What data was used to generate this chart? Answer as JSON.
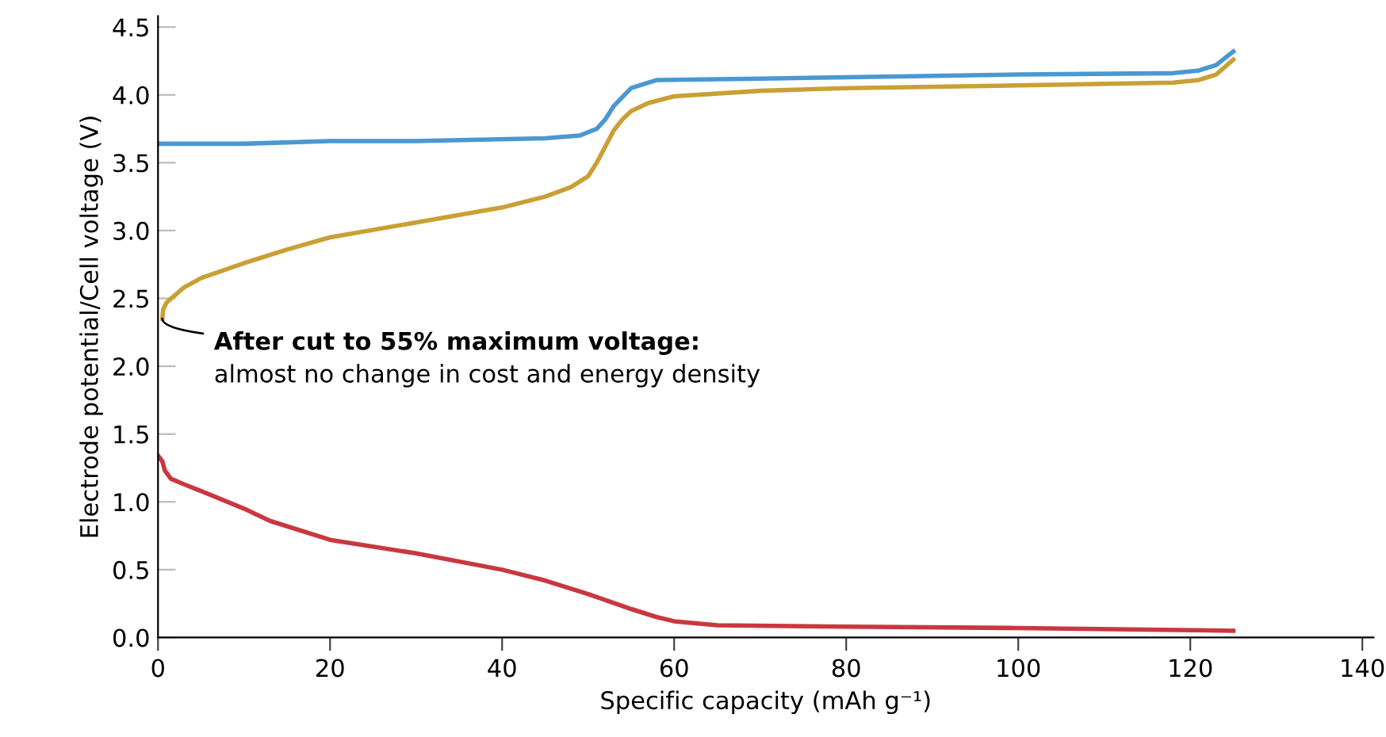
{
  "chart_data": {
    "type": "line",
    "xlabel": "Specific capacity (mAh g⁻¹)",
    "ylabel": "Electrode potential/Cell voltage (V)",
    "xlim": [
      0,
      141.3
    ],
    "ylim": [
      0,
      4.58
    ],
    "xticks": [
      0,
      20,
      40,
      60,
      80,
      100,
      120,
      140
    ],
    "yticks": [
      {
        "value": 0,
        "label": "0.0"
      },
      {
        "value": 0.5,
        "label": "0.5"
      },
      {
        "value": 1,
        "label": "1.0"
      },
      {
        "value": 1.5,
        "label": "1.5"
      },
      {
        "value": 2,
        "label": "2.0"
      },
      {
        "value": 2.5,
        "label": "2.5"
      },
      {
        "value": 3,
        "label": "3.0"
      },
      {
        "value": 3.5,
        "label": "3.5"
      },
      {
        "value": 4,
        "label": "4.0"
      },
      {
        "value": 4.5,
        "label": "4.5"
      }
    ],
    "marker": "none",
    "line_style": "solid",
    "series": [
      {
        "color": "#4a98d2",
        "x": [
          0,
          10,
          20,
          30,
          45,
          49,
          51,
          52,
          53,
          55,
          58,
          70,
          80,
          100,
          118,
          121,
          123,
          125
        ],
        "values": [
          3.64,
          3.64,
          3.66,
          3.66,
          3.68,
          3.7,
          3.75,
          3.82,
          3.92,
          4.05,
          4.11,
          4.12,
          4.13,
          4.15,
          4.16,
          4.18,
          4.22,
          4.32
        ]
      },
      {
        "color": "#c9a035",
        "x": [
          0.5,
          0.6,
          1,
          3,
          5,
          10,
          15,
          20,
          30,
          40,
          45,
          48,
          50,
          51,
          52,
          53,
          54,
          55,
          57,
          60,
          70,
          80,
          100,
          118,
          121,
          123,
          125
        ],
        "values": [
          2.35,
          2.42,
          2.47,
          2.58,
          2.65,
          2.76,
          2.86,
          2.95,
          3.06,
          3.17,
          3.25,
          3.32,
          3.4,
          3.5,
          3.62,
          3.74,
          3.82,
          3.88,
          3.94,
          3.99,
          4.03,
          4.05,
          4.07,
          4.09,
          4.11,
          4.15,
          4.26
        ]
      },
      {
        "color": "#c9383f",
        "x": [
          0,
          0.5,
          0.8,
          1.5,
          3,
          5,
          10,
          13,
          20,
          30,
          40,
          45,
          50,
          55,
          58,
          60,
          65,
          80,
          100,
          125
        ],
        "values": [
          1.34,
          1.3,
          1.23,
          1.17,
          1.13,
          1.08,
          0.95,
          0.86,
          0.72,
          0.62,
          0.5,
          0.42,
          0.32,
          0.21,
          0.15,
          0.12,
          0.09,
          0.08,
          0.07,
          0.05
        ]
      }
    ],
    "annotations": [
      {
        "text": "After cut to 55% maximum voltage:",
        "x": 0.5,
        "y": 2.35
      },
      "almost no change in cost and energy density"
    ]
  }
}
